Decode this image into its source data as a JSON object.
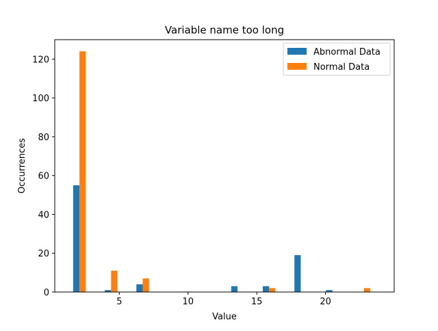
{
  "chart_data": {
    "type": "bar",
    "title": "Variable name too long",
    "xlabel": "Value",
    "ylabel": "Occurrences",
    "xlim": [
      0.3,
      25.0
    ],
    "ylim": [
      0,
      130
    ],
    "xticks": [
      5,
      10,
      15,
      20
    ],
    "yticks": [
      0,
      20,
      40,
      60,
      80,
      100,
      120
    ],
    "bin_centers": [
      2.1,
      4.4,
      6.7,
      9.0,
      11.3,
      13.6,
      15.9,
      18.2,
      20.5,
      22.8
    ],
    "bar_width": 0.92,
    "legend_position": "upper right",
    "series": [
      {
        "name": "Abnormal Data",
        "color": "#1f77b4",
        "values": [
          55,
          1,
          4,
          0,
          0,
          3,
          3,
          19,
          1,
          0
        ]
      },
      {
        "name": "Normal Data",
        "color": "#ff7f0e",
        "values": [
          124,
          11,
          7,
          0,
          0,
          0,
          2,
          0,
          0,
          2
        ]
      }
    ]
  }
}
